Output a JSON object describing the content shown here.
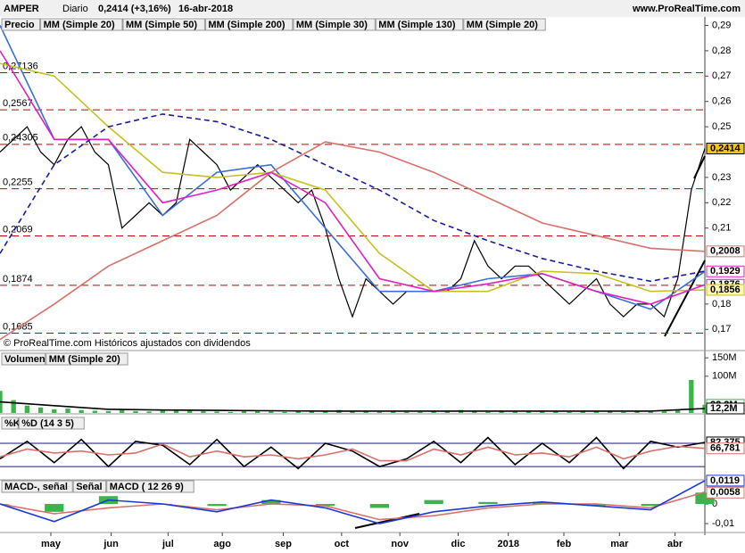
{
  "header": {
    "ticker": "AMPER",
    "period": "Diario",
    "quote": "0,2414 (+3,16%)",
    "date": "16-abr-2018",
    "site": "www.ProRealTime.com"
  },
  "chart_data": [
    {
      "type": "line",
      "footnote": "© ProRealTime.com Históricos ajustados con dividendos",
      "xlim": [
        0,
        52
      ],
      "ylim": [
        0.162,
        0.293
      ],
      "yticks": [
        {
          "value": 0.29,
          "label": "0,29"
        },
        {
          "value": 0.28,
          "label": "0,28"
        },
        {
          "value": 0.27,
          "label": "0,27"
        },
        {
          "value": 0.26,
          "label": "0,26"
        },
        {
          "value": 0.25,
          "label": "0,25"
        },
        {
          "value": 0.23,
          "label": "0,23"
        },
        {
          "value": 0.22,
          "label": "0,22"
        },
        {
          "value": 0.21,
          "label": "0,21"
        },
        {
          "value": 0.18,
          "label": "0,18"
        },
        {
          "value": 0.17,
          "label": "0,17"
        }
      ],
      "levels": [
        {
          "value": 0.27136,
          "label": "0,27136"
        },
        {
          "value": 0.2567,
          "label": "0,2567"
        },
        {
          "value": 0.24305,
          "label": "0,24305"
        },
        {
          "value": 0.2255,
          "label": "0,2255"
        },
        {
          "value": 0.2069,
          "label": "0,2069"
        },
        {
          "value": 0.1874,
          "label": "0,1874"
        },
        {
          "value": 0.1685,
          "label": "0,1685"
        }
      ],
      "series": [
        {
          "name": "Precio",
          "color": "#000000",
          "x": [
            0,
            1,
            2,
            3,
            4,
            5,
            6,
            7,
            8,
            9,
            10,
            11,
            12,
            13,
            14,
            15,
            16,
            17,
            18,
            19,
            20,
            21,
            22,
            23,
            24,
            25,
            26,
            27,
            28,
            29,
            30,
            31,
            32,
            33,
            34,
            35,
            36,
            37,
            38,
            39,
            40,
            41,
            42,
            43,
            44,
            45,
            46,
            47,
            48,
            49,
            50,
            51,
            52
          ],
          "values": [
            0.24,
            0.245,
            0.25,
            0.24,
            0.235,
            0.245,
            0.25,
            0.24,
            0.235,
            0.21,
            0.215,
            0.22,
            0.215,
            0.22,
            0.245,
            0.24,
            0.235,
            0.225,
            0.23,
            0.235,
            0.23,
            0.225,
            0.22,
            0.225,
            0.21,
            0.19,
            0.175,
            0.19,
            0.185,
            0.18,
            0.185,
            0.185,
            0.185,
            0.185,
            0.19,
            0.205,
            0.195,
            0.19,
            0.195,
            0.195,
            0.19,
            0.185,
            0.18,
            0.185,
            0.19,
            0.18,
            0.175,
            0.18,
            0.18,
            0.175,
            0.19,
            0.225,
            0.2414
          ]
        },
        {
          "name": "MM (Simple 20)",
          "color": "#3a6fd8",
          "x": [
            0,
            4,
            8,
            12,
            16,
            20,
            24,
            28,
            32,
            36,
            40,
            44,
            48,
            52
          ],
          "values": [
            0.29,
            0.245,
            0.245,
            0.215,
            0.232,
            0.235,
            0.21,
            0.185,
            0.185,
            0.19,
            0.192,
            0.185,
            0.178,
            0.1929
          ]
        },
        {
          "name": "MM (Simple 50)",
          "color": "#c8c020",
          "x": [
            0,
            4,
            8,
            12,
            16,
            20,
            24,
            28,
            32,
            36,
            40,
            44,
            48,
            52
          ],
          "values": [
            0.275,
            0.27,
            0.25,
            0.232,
            0.23,
            0.232,
            0.225,
            0.2,
            0.185,
            0.185,
            0.193,
            0.192,
            0.185,
            0.1856
          ]
        },
        {
          "name": "MM (Simple 200)",
          "color": "#d9706a",
          "x": [
            0,
            4,
            8,
            12,
            16,
            20,
            24,
            28,
            32,
            36,
            40,
            44,
            48,
            52
          ],
          "values": [
            0.166,
            0.18,
            0.195,
            0.205,
            0.215,
            0.232,
            0.244,
            0.24,
            0.232,
            0.222,
            0.212,
            0.207,
            0.202,
            0.2008
          ]
        },
        {
          "name": "MM (Simple 30)",
          "color": "#e020c0",
          "x": [
            0,
            4,
            8,
            12,
            16,
            20,
            24,
            28,
            32,
            36,
            40,
            44,
            48,
            52
          ],
          "values": [
            0.28,
            0.245,
            0.245,
            0.22,
            0.225,
            0.232,
            0.22,
            0.19,
            0.185,
            0.188,
            0.192,
            0.185,
            0.18,
            0.1876
          ]
        },
        {
          "name": "MM (Simple 130)",
          "color": "#1a1aa0",
          "dash": true,
          "x": [
            0,
            4,
            8,
            12,
            16,
            20,
            24,
            28,
            32,
            36,
            40,
            44,
            48,
            52
          ],
          "values": [
            0.2,
            0.235,
            0.25,
            0.255,
            0.252,
            0.245,
            0.235,
            0.225,
            0.213,
            0.205,
            0.198,
            0.193,
            0.189,
            0.193
          ]
        }
      ],
      "extra_legend": [
        {
          "name": "MM (Simple 20)",
          "color": "#d9706a"
        }
      ],
      "tags": [
        {
          "value": 0.2414,
          "label": "0,2414",
          "color": "#000000",
          "fill": "#f5c518"
        },
        {
          "value": 0.2008,
          "label": "0,2008",
          "color": "#d9706a"
        },
        {
          "value": 0.1929,
          "label": "0,1929",
          "color": "#e020c0"
        },
        {
          "value": 0.1876,
          "label": "0,1876",
          "color": "#e020c0"
        },
        {
          "value": 0.1856,
          "label": "0,1856",
          "color": "#c8c020",
          "fill": "#fff7b0"
        }
      ]
    },
    {
      "type": "bar",
      "xlim": [
        0,
        52
      ],
      "ylim": [
        0,
        165
      ],
      "yticks": [
        {
          "value": 150,
          "label": "150M"
        },
        {
          "value": 100,
          "label": "100M"
        }
      ],
      "series": [
        {
          "name": "Volumen",
          "color": "#3cb44b",
          "style": "bar",
          "x": [
            0,
            1,
            2,
            3,
            4,
            5,
            6,
            7,
            8,
            9,
            10,
            11,
            12,
            13,
            14,
            15,
            16,
            17,
            18,
            19,
            20,
            21,
            22,
            23,
            24,
            25,
            26,
            27,
            28,
            29,
            30,
            31,
            32,
            33,
            34,
            35,
            36,
            37,
            38,
            39,
            40,
            41,
            42,
            43,
            44,
            45,
            46,
            47,
            48,
            49,
            50,
            51,
            52
          ],
          "values": [
            60,
            35,
            20,
            15,
            10,
            12,
            8,
            6,
            5,
            8,
            5,
            4,
            6,
            10,
            7,
            5,
            4,
            3,
            5,
            6,
            4,
            3,
            5,
            4,
            6,
            8,
            5,
            4,
            3,
            4,
            3,
            3,
            4,
            5,
            8,
            4,
            3,
            5,
            4,
            6,
            5,
            4,
            3,
            6,
            5,
            4,
            3,
            4,
            3,
            5,
            8,
            90,
            22.2
          ]
        },
        {
          "name": "MM (Simple 20)",
          "color": "#000000",
          "x": [
            0,
            4,
            8,
            12,
            16,
            20,
            24,
            28,
            32,
            36,
            40,
            44,
            48,
            52
          ],
          "values": [
            30,
            20,
            10,
            8,
            7,
            6,
            5,
            5,
            5,
            5,
            5,
            5,
            5,
            12.2
          ]
        }
      ],
      "tags": [
        {
          "value": 22.2,
          "label": "22,2M",
          "color": "#3cb44b"
        },
        {
          "value": 12.2,
          "label": "12,2M",
          "color": "#000000"
        }
      ]
    },
    {
      "type": "line",
      "xlim": [
        0,
        52
      ],
      "ylim": [
        -12,
        149
      ],
      "hlines": [
        80,
        20
      ],
      "series": [
        {
          "name": "%K",
          "color": "#000000",
          "x": [
            0,
            2,
            4,
            6,
            8,
            10,
            12,
            14,
            16,
            18,
            20,
            22,
            24,
            26,
            28,
            30,
            32,
            34,
            36,
            38,
            40,
            42,
            44,
            46,
            48,
            50,
            52
          ],
          "values": [
            40,
            85,
            30,
            90,
            20,
            85,
            75,
            25,
            90,
            20,
            70,
            15,
            80,
            60,
            20,
            40,
            85,
            30,
            95,
            25,
            80,
            30,
            95,
            15,
            85,
            70,
            82.375
          ]
        },
        {
          "name": "%D (14 3 5)",
          "color": "#d9706a",
          "x": [
            0,
            2,
            4,
            6,
            8,
            10,
            12,
            14,
            16,
            18,
            20,
            22,
            24,
            26,
            28,
            30,
            32,
            34,
            36,
            38,
            40,
            42,
            44,
            46,
            48,
            50,
            52
          ],
          "values": [
            45,
            65,
            55,
            60,
            50,
            55,
            78,
            45,
            60,
            45,
            50,
            40,
            50,
            65,
            35,
            35,
            65,
            50,
            70,
            50,
            55,
            45,
            70,
            40,
            60,
            72,
            66.781
          ]
        }
      ],
      "tags": [
        {
          "value": 82.375,
          "label": "82,375",
          "color": "#000000"
        },
        {
          "value": 66.781,
          "label": "66,781",
          "color": "#d9706a"
        }
      ]
    },
    {
      "type": "line",
      "xlim": [
        0,
        52
      ],
      "ylim": [
        -0.0141,
        0.0123
      ],
      "yticks": [
        0,
        {
          "value": -0.01,
          "label": "-0,01"
        }
      ],
      "xticks": [
        {
          "value": 3.75,
          "label": "may"
        },
        {
          "value": 8.2,
          "label": "jun"
        },
        {
          "value": 12.4,
          "label": "jul"
        },
        {
          "value": 16.4,
          "label": "ago"
        },
        {
          "value": 20.9,
          "label": "sep"
        },
        {
          "value": 25.2,
          "label": "oct"
        },
        {
          "value": 29.5,
          "label": "nov"
        },
        {
          "value": 33.8,
          "label": "dic"
        },
        {
          "value": 37.5,
          "label": "2018"
        },
        {
          "value": 41.6,
          "label": "feb"
        },
        {
          "value": 45.7,
          "label": "mar"
        },
        {
          "value": 49.8,
          "label": "abr"
        }
      ],
      "series": [
        {
          "name": "MACD-, señal",
          "color": "#3cb44b",
          "style": "bar",
          "x": [
            0,
            4,
            8,
            12,
            16,
            20,
            24,
            28,
            32,
            36,
            40,
            44,
            48,
            52
          ],
          "values": [
            0,
            -0.004,
            0.004,
            0,
            -0.001,
            0.002,
            -0.001,
            -0.002,
            0.002,
            0.001,
            0.001,
            -0.001,
            -0.001,
            0.0058
          ]
        },
        {
          "name": "Señal",
          "color": "#d9706a",
          "x": [
            0,
            4,
            8,
            12,
            16,
            20,
            24,
            28,
            32,
            36,
            40,
            44,
            48,
            52
          ],
          "values": [
            0,
            -0.005,
            -0.002,
            0,
            -0.003,
            0,
            -0.001,
            -0.008,
            -0.006,
            -0.002,
            0,
            0,
            -0.002,
            0.0061
          ]
        },
        {
          "name": "MACD ( 12 26 9)",
          "color": "#1a3ad8",
          "x": [
            0,
            4,
            8,
            12,
            16,
            20,
            24,
            28,
            32,
            36,
            40,
            44,
            48,
            52
          ],
          "values": [
            0,
            -0.009,
            0.002,
            0,
            -0.004,
            0.002,
            -0.002,
            -0.01,
            -0.004,
            -0.001,
            0.001,
            -0.001,
            -0.003,
            0.0119
          ]
        }
      ],
      "tags": [
        {
          "value": 0.0119,
          "label": "0,0119",
          "color": "#1a3ad8"
        },
        {
          "value": 0.0061,
          "label": "0,0061",
          "color": "#3cb44b"
        },
        {
          "value": 0.0058,
          "label": "0,0058",
          "color": "#d9706a"
        }
      ]
    }
  ]
}
